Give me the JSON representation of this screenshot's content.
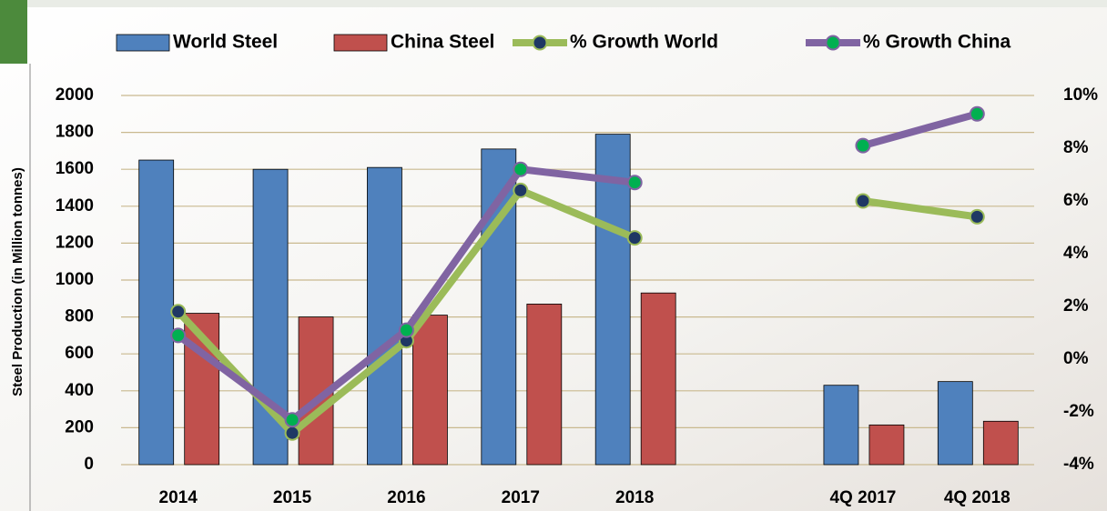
{
  "chart_data": {
    "type": "combo",
    "y_label": "Steel Production (in Million tonnes)",
    "categories": [
      "2014",
      "2015",
      "2016",
      "2017",
      "2018",
      null,
      "4Q 2017",
      "4Q 2018"
    ],
    "series": [
      {
        "name": "World Steel",
        "type": "bar",
        "color": "#4f81bd",
        "values": [
          1650,
          1600,
          1610,
          1710,
          1790,
          null,
          430,
          450
        ]
      },
      {
        "name": "China Steel",
        "type": "bar",
        "color": "#c0504d",
        "values": [
          820,
          800,
          810,
          870,
          930,
          null,
          215,
          235
        ]
      },
      {
        "name": "% Growth World",
        "type": "line",
        "axis": "y2",
        "color": "#9bbb59",
        "marker_color": "#1f3864",
        "values": [
          1.8,
          -2.8,
          0.7,
          6.4,
          4.6,
          null,
          6.0,
          5.4
        ]
      },
      {
        "name": "% Growth China",
        "type": "line",
        "axis": "y2",
        "color": "#8064a2",
        "marker_color": "#00b050",
        "values": [
          0.9,
          -2.3,
          1.1,
          7.2,
          6.7,
          null,
          8.1,
          9.3
        ]
      }
    ],
    "ylim": [
      0,
      2000
    ],
    "yticks": [
      0,
      200,
      400,
      600,
      800,
      1000,
      1200,
      1400,
      1600,
      1800,
      2000
    ],
    "y2lim": [
      -4,
      10
    ],
    "y2ticks": [
      {
        "value": -4,
        "label": "-4%"
      },
      {
        "value": -2,
        "label": "-2%"
      },
      {
        "value": 0,
        "label": "0%"
      },
      {
        "value": 2,
        "label": "2%"
      },
      {
        "value": 4,
        "label": "4%"
      },
      {
        "value": 6,
        "label": "6%"
      },
      {
        "value": 8,
        "label": "8%"
      },
      {
        "value": 10,
        "label": "10%"
      }
    ],
    "grid": true,
    "legend": "top"
  }
}
